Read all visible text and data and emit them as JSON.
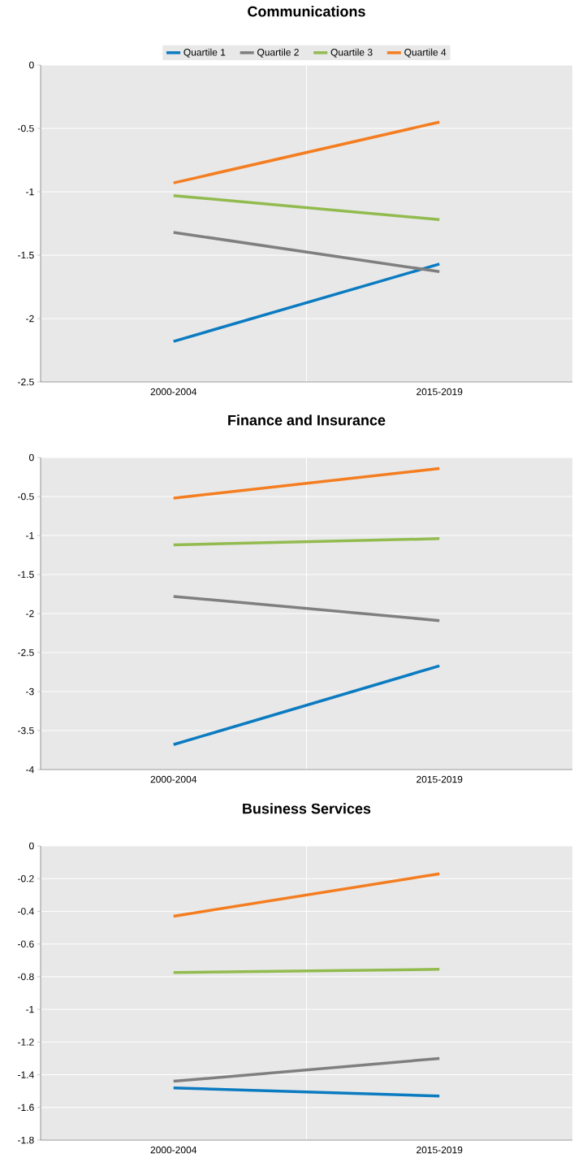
{
  "chart_data": [
    {
      "type": "line",
      "title": "Communications",
      "categories": [
        "2000-2004",
        "2015-2019"
      ],
      "ylim": [
        -2.5,
        0
      ],
      "yticks": [
        -2.5,
        -2,
        -1.5,
        -1,
        -0.5,
        0
      ],
      "grid": true,
      "legend": "top",
      "series": [
        {
          "name": "Quartile 1",
          "color": "#0b7bc1",
          "values": [
            -2.18,
            -1.57
          ]
        },
        {
          "name": "Quartile 2",
          "color": "#7f7f7f",
          "values": [
            -1.32,
            -1.63
          ]
        },
        {
          "name": "Quartile 3",
          "color": "#92bb4f",
          "values": [
            -1.03,
            -1.22
          ]
        },
        {
          "name": "Quartile 4",
          "color": "#f47d20",
          "values": [
            -0.93,
            -0.45
          ]
        }
      ]
    },
    {
      "type": "line",
      "title": "Finance and Insurance",
      "categories": [
        "2000-2004",
        "2015-2019"
      ],
      "ylim": [
        -4,
        0
      ],
      "yticks": [
        -4,
        -3.5,
        -3,
        -2.5,
        -2,
        -1.5,
        -1,
        -0.5,
        0
      ],
      "grid": true,
      "series": [
        {
          "color": "#0b7bc1",
          "values": [
            -3.68,
            -2.67
          ]
        },
        {
          "color": "#7f7f7f",
          "values": [
            -1.78,
            -2.09
          ]
        },
        {
          "color": "#92bb4f",
          "values": [
            -1.12,
            -1.04
          ]
        },
        {
          "color": "#f47d20",
          "values": [
            -0.52,
            -0.14
          ]
        }
      ]
    },
    {
      "type": "line",
      "title": "Business Services",
      "categories": [
        "2000-2004",
        "2015-2019"
      ],
      "ylim": [
        -1.8,
        0
      ],
      "yticks": [
        -1.8,
        -1.6,
        -1.4,
        -1.2,
        -1,
        -0.8,
        -0.6,
        -0.4,
        -0.2,
        0
      ],
      "grid": true,
      "series": [
        {
          "color": "#0b7bc1",
          "values": [
            -1.48,
            -1.53
          ]
        },
        {
          "color": "#7f7f7f",
          "values": [
            -1.44,
            -1.3
          ]
        },
        {
          "color": "#92bb4f",
          "values": [
            -0.775,
            -0.755
          ]
        },
        {
          "color": "#f47d20",
          "values": [
            -0.43,
            -0.17
          ]
        }
      ]
    }
  ]
}
